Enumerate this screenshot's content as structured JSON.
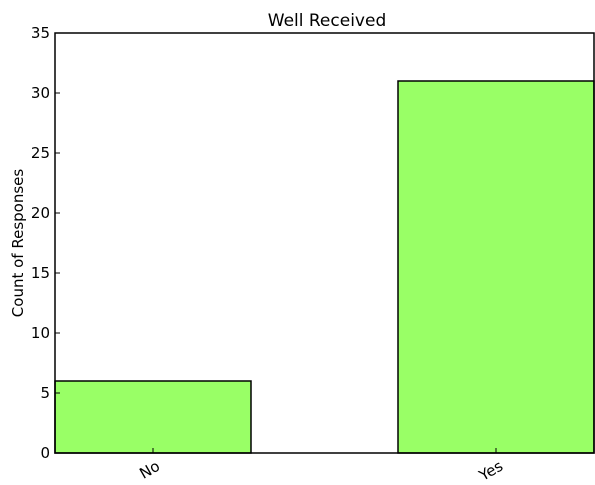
{
  "chart_data": {
    "type": "bar",
    "title": "Well Received",
    "xlabel": "",
    "ylabel": "Count of Responses",
    "categories": [
      "No",
      "Yes"
    ],
    "values": [
      6,
      31
    ],
    "ylim": [
      0,
      35
    ],
    "yticks": [
      "0",
      "5",
      "10",
      "15",
      "20",
      "25",
      "30",
      "35"
    ],
    "grid": false,
    "bar_color": "#99ff66",
    "edge_color": "#000000"
  }
}
